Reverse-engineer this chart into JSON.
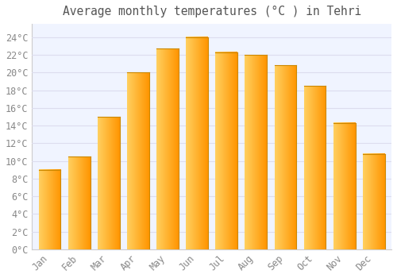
{
  "title": "Average monthly temperatures (°C ) in Tehri",
  "months": [
    "Jan",
    "Feb",
    "Mar",
    "Apr",
    "May",
    "Jun",
    "Jul",
    "Aug",
    "Sep",
    "Oct",
    "Nov",
    "Dec"
  ],
  "values": [
    9.0,
    10.5,
    15.0,
    20.0,
    22.7,
    24.0,
    22.3,
    22.0,
    20.8,
    18.5,
    14.3,
    10.8
  ],
  "bar_color_left": "#FFB800",
  "bar_color_right": "#FF8C00",
  "bar_color_center": "#FFC030",
  "bar_edge_color": "#CC8800",
  "background_color": "#FFFFFF",
  "plot_bg_color": "#F0F4FF",
  "grid_color": "#DDDDEE",
  "yticks": [
    0,
    2,
    4,
    6,
    8,
    10,
    12,
    14,
    16,
    18,
    20,
    22,
    24
  ],
  "ylim": [
    0,
    25.5
  ],
  "tick_label_color": "#888888",
  "title_color": "#555555",
  "title_fontsize": 10.5,
  "tick_fontsize": 8.5,
  "font_family": "monospace"
}
